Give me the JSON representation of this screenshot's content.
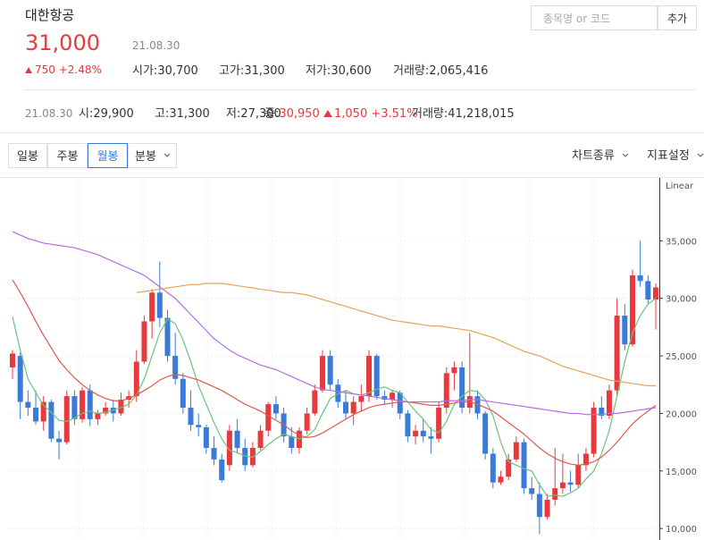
{
  "header": {
    "stock_name": "대한항공",
    "price": "31,000",
    "date": "21.08.30",
    "change": "750",
    "change_rate": "+2.48%",
    "stats": [
      {
        "label": "시가:",
        "value": "30,700"
      },
      {
        "label": "고가:",
        "value": "31,300"
      },
      {
        "label": "저가:",
        "value": "30,600"
      },
      {
        "label": "거래량:",
        "value": "2,065,416"
      }
    ]
  },
  "search": {
    "placeholder": "종목명 or 코드",
    "button": "추가"
  },
  "period_summary": {
    "date": "21.08.30",
    "items": [
      {
        "label": "시:",
        "value": "29,900"
      },
      {
        "label": "고:",
        "value": "31,300"
      },
      {
        "label": "저:",
        "value": "27,300"
      },
      {
        "label": "종:",
        "value": "30,950"
      }
    ],
    "change": "1,050",
    "change_rate": "+3.51%",
    "volume": {
      "label": "거래량:",
      "value": "41,218,015"
    }
  },
  "tabs": {
    "items": [
      "일봉",
      "주봉",
      "월봉",
      "분봉"
    ],
    "active": 2,
    "right": [
      "차트종류",
      "지표설정"
    ]
  },
  "chart_data": {
    "type": "candlestick",
    "scale_label": "Linear",
    "grid": true,
    "up_color": "#e8393f",
    "down_color": "#3a7bd9",
    "ylim": [
      9000,
      40000
    ],
    "yticks": [
      {
        "value": 10000,
        "label": "10,000"
      },
      {
        "value": 15000,
        "label": "15,000"
      },
      {
        "value": 20000,
        "label": "20,000"
      },
      {
        "value": 25000,
        "label": "25,000"
      },
      {
        "value": 30000,
        "label": "30,000"
      },
      {
        "value": 35000,
        "label": "35,000"
      }
    ],
    "open": [
      24000,
      25000,
      21000,
      20500,
      19300,
      21000,
      17800,
      17500,
      21500,
      19500,
      22000,
      19500,
      20000,
      20500,
      20000,
      21200,
      21500,
      24500,
      28000,
      30500,
      28300,
      25000,
      23000,
      20500,
      19000,
      18800,
      17000,
      16000,
      15500,
      18500,
      17000,
      15500,
      17000,
      18500,
      20800,
      20000,
      18000,
      17000,
      18500,
      20000,
      22000,
      25000,
      22500,
      21000,
      20000,
      21000,
      21500,
      25000,
      21500,
      21200,
      21800,
      20000,
      18000,
      18500,
      18000,
      17800,
      20500,
      23500,
      24000,
      20500,
      21500,
      20000,
      16500,
      14000,
      14500,
      16000,
      17500,
      13500,
      13000,
      11000,
      12500,
      13500,
      14000,
      13800,
      15500,
      16500,
      20500,
      19800,
      22000,
      28500,
      26000,
      32000,
      31500,
      29900
    ],
    "high": [
      25500,
      25300,
      22000,
      22000,
      21500,
      21200,
      18500,
      22000,
      22000,
      22300,
      22500,
      20300,
      21000,
      21200,
      21800,
      22000,
      25500,
      28500,
      30800,
      33200,
      29000,
      27000,
      23500,
      22000,
      20000,
      19000,
      18000,
      16500,
      19000,
      19500,
      17800,
      17500,
      19000,
      21000,
      21500,
      20500,
      18800,
      18800,
      20500,
      22500,
      25500,
      25500,
      23000,
      22000,
      21500,
      22500,
      25500,
      25200,
      22000,
      22000,
      22000,
      20300,
      19000,
      19500,
      18800,
      21000,
      24000,
      24500,
      24500,
      27000,
      22000,
      20200,
      17000,
      15000,
      16500,
      18000,
      17800,
      14500,
      14000,
      13000,
      17000,
      16500,
      15000,
      16500,
      17000,
      21000,
      21500,
      22500,
      30000,
      29500,
      32500,
      35000,
      32000,
      31300
    ],
    "low": [
      23000,
      19500,
      19800,
      19000,
      18500,
      17500,
      16000,
      17300,
      19000,
      19200,
      18900,
      19000,
      19800,
      19300,
      19800,
      20500,
      21000,
      24300,
      26500,
      27500,
      24500,
      22500,
      20000,
      18500,
      18000,
      16500,
      15500,
      14000,
      15000,
      16500,
      15000,
      15300,
      16800,
      18000,
      19500,
      17500,
      16500,
      16500,
      18200,
      19800,
      21800,
      22000,
      20500,
      19500,
      19000,
      20200,
      21000,
      21200,
      20800,
      20500,
      19500,
      17500,
      17300,
      17500,
      16500,
      17500,
      20000,
      22000,
      20000,
      20000,
      19500,
      16000,
      13500,
      13800,
      14200,
      15800,
      13000,
      12500,
      9500,
      10800,
      12000,
      13000,
      13200,
      13500,
      15000,
      16200,
      19500,
      19500,
      21500,
      25500,
      25800,
      31000,
      29500,
      27300
    ],
    "close": [
      25200,
      21000,
      20500,
      19300,
      21000,
      17800,
      17500,
      21500,
      19500,
      22000,
      19500,
      20000,
      20500,
      20000,
      21200,
      21500,
      24500,
      28000,
      30500,
      28300,
      25000,
      23000,
      20500,
      19000,
      18800,
      17000,
      16000,
      14200,
      18500,
      17000,
      15500,
      17000,
      18500,
      20800,
      20000,
      18000,
      17000,
      18500,
      20000,
      22000,
      25000,
      22500,
      21000,
      20000,
      21000,
      21500,
      25000,
      21500,
      21200,
      21800,
      20000,
      18000,
      18500,
      18000,
      17800,
      20500,
      23500,
      24000,
      20500,
      21500,
      20000,
      16500,
      14000,
      14500,
      16000,
      17500,
      13500,
      13000,
      11000,
      12500,
      13500,
      14000,
      13800,
      15500,
      16500,
      20500,
      19800,
      22000,
      28500,
      26000,
      32000,
      31500,
      29900,
      30950
    ],
    "moving_averages": [
      {
        "color": "#6cc47a",
        "values": [
          28400,
          25500,
          23000,
          21800,
          20700,
          20100,
          19400,
          19300,
          19600,
          20000,
          20200,
          20000,
          20100,
          20300,
          20500,
          20800,
          21600,
          23000,
          25000,
          27000,
          28200,
          27800,
          26400,
          24500,
          22400,
          20800,
          19200,
          17800,
          16800,
          16600,
          16300,
          16200,
          16700,
          17300,
          17800,
          18200,
          18000,
          17800,
          18000,
          18600,
          20000,
          21300,
          21700,
          22000,
          21700,
          21600,
          21800,
          22100,
          22300,
          22000,
          21800,
          21000,
          20200,
          19500,
          18600,
          18300,
          19300,
          20800,
          21500,
          22000,
          21900,
          21200,
          19800,
          17500,
          15800,
          15500,
          15200,
          15000,
          13800,
          12800,
          12900,
          12800,
          13100,
          13500,
          14300,
          15000,
          16500,
          18500,
          21500,
          24500,
          27000,
          28500,
          29500,
          30000
        ]
      },
      {
        "color": "#e0584f",
        "values": [
          31600,
          30500,
          29300,
          28000,
          26800,
          25700,
          24600,
          23800,
          23100,
          22500,
          22000,
          21600,
          21300,
          21100,
          21100,
          21300,
          21600,
          22000,
          22400,
          22900,
          23200,
          23400,
          23300,
          23100,
          22900,
          22600,
          22300,
          22000,
          21600,
          21200,
          20800,
          20500,
          20200,
          19800,
          19400,
          19000,
          18500,
          18100,
          17900,
          18000,
          18300,
          18700,
          19100,
          19500,
          19900,
          20200,
          20500,
          20700,
          20800,
          20900,
          21000,
          21000,
          20900,
          20800,
          20700,
          20700,
          20800,
          20900,
          21000,
          21000,
          20800,
          20500,
          20200,
          19700,
          19200,
          18700,
          18200,
          17600,
          17000,
          16500,
          16100,
          15800,
          15600,
          15500,
          15600,
          15800,
          16200,
          16800,
          17500,
          18300,
          19100,
          19700,
          20200,
          20700
        ]
      },
      {
        "color": "#b46de0",
        "values": [
          35800,
          35500,
          35200,
          35000,
          34800,
          34700,
          34600,
          34500,
          34400,
          34200,
          34000,
          33800,
          33500,
          33200,
          32900,
          32600,
          32300,
          32000,
          31500,
          31000,
          30500,
          30000,
          29300,
          28600,
          27900,
          27200,
          26500,
          26000,
          25500,
          25100,
          24800,
          24500,
          24200,
          24000,
          23800,
          23500,
          23200,
          22900,
          22600,
          22300,
          22100,
          22000,
          21900,
          21800,
          21700,
          21600,
          21500,
          21400,
          21300,
          21200,
          21100,
          21000,
          21000,
          21000,
          21000,
          21000,
          21100,
          21100,
          21100,
          21200,
          21200,
          21100,
          21000,
          20900,
          20800,
          20700,
          20600,
          20500,
          20400,
          20300,
          20200,
          20100,
          20000,
          20000,
          19900,
          19900,
          19900,
          20000,
          20000,
          20100,
          20200,
          20300,
          20400,
          20500
        ]
      },
      {
        "color": "#e8a25a",
        "values": [
          null,
          null,
          null,
          null,
          null,
          null,
          null,
          null,
          null,
          null,
          null,
          null,
          null,
          null,
          null,
          null,
          30500,
          30600,
          30700,
          30800,
          30900,
          31000,
          31100,
          31200,
          31200,
          31300,
          31300,
          31300,
          31200,
          31100,
          31000,
          30900,
          30800,
          30700,
          30600,
          30500,
          30500,
          30400,
          30300,
          30100,
          29900,
          29700,
          29500,
          29300,
          29100,
          28900,
          28700,
          28500,
          28300,
          28100,
          28000,
          27900,
          27800,
          27700,
          27600,
          27600,
          27500,
          27400,
          27300,
          27200,
          27000,
          26800,
          26600,
          26300,
          26000,
          25700,
          25400,
          25200,
          25000,
          24700,
          24400,
          24100,
          23900,
          23700,
          23500,
          23300,
          23100,
          22900,
          22800,
          22700,
          22600,
          22500,
          22400,
          22400
        ]
      }
    ]
  }
}
